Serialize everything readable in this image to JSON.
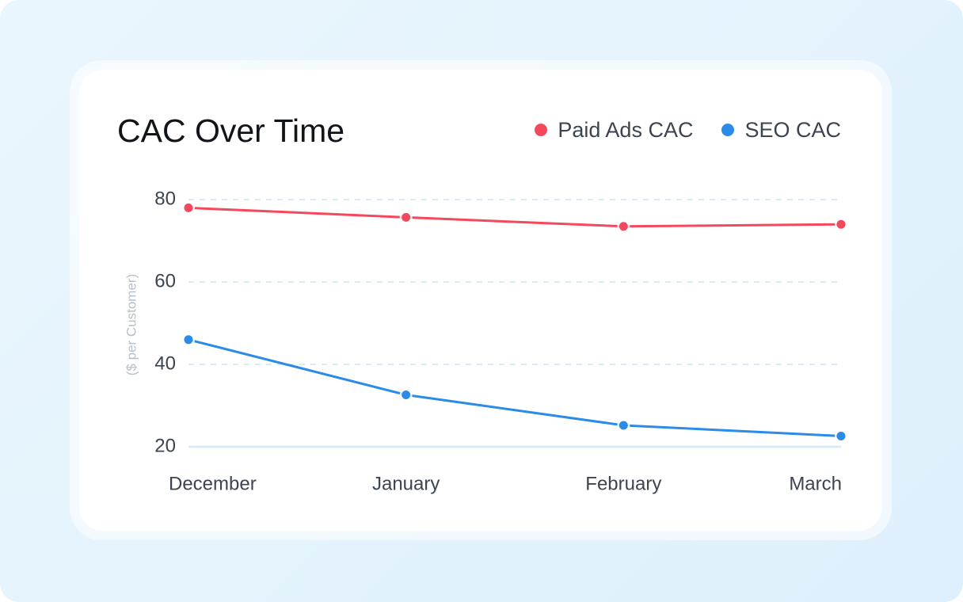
{
  "chart_data": {
    "type": "line",
    "title": "CAC Over Time",
    "xlabel": "",
    "ylabel": "($ per Customer)",
    "categories": [
      "December",
      "January",
      "February",
      "March"
    ],
    "y_ticks": [
      "20",
      "40",
      "60",
      "80"
    ],
    "ylim": [
      20,
      80
    ],
    "grid": true,
    "legend_position": "top-right",
    "series": [
      {
        "name": "Paid Ads CAC",
        "color": "#f4485c",
        "values": [
          78,
          75.7,
          73.5,
          74
        ]
      },
      {
        "name": "SEO CAC",
        "color": "#2a8be8",
        "values": [
          46,
          32.6,
          25.2,
          22.6
        ]
      }
    ]
  }
}
